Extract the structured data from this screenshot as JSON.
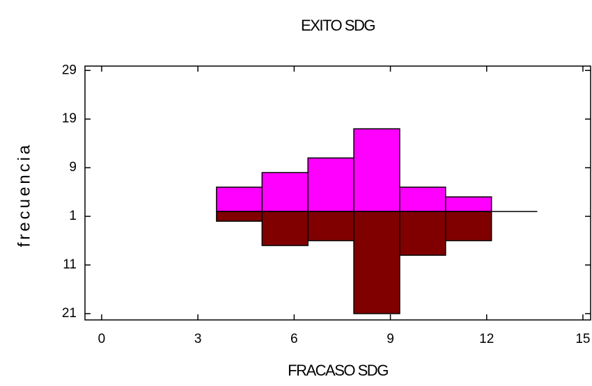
{
  "chart_data": {
    "type": "mirror-histogram",
    "title": "EXITO SDG",
    "xlabel": "FRACASO SDG",
    "ylabel": "frecuencia",
    "bins": [
      3.58,
      5.0,
      6.43,
      7.86,
      9.29,
      10.72,
      12.15,
      13.58
    ],
    "series": [
      {
        "color": "#ff00ff",
        "direction": "up",
        "values": [
          5,
          8,
          11,
          17,
          5,
          3,
          0
        ]
      },
      {
        "color": "#800000",
        "direction": "down",
        "values": [
          2,
          7,
          6,
          21,
          9,
          6,
          0
        ]
      }
    ],
    "xlim": [
      -0.52,
      15.24
    ],
    "xticks": [
      0,
      3,
      6,
      9,
      12,
      15
    ],
    "ylim": [
      -22.3,
      29.9
    ],
    "yticks": [
      29,
      19,
      9,
      {
        "value": -1,
        "label": "1"
      },
      {
        "value": -11,
        "label": "11"
      },
      {
        "value": -21,
        "label": "21"
      }
    ]
  }
}
